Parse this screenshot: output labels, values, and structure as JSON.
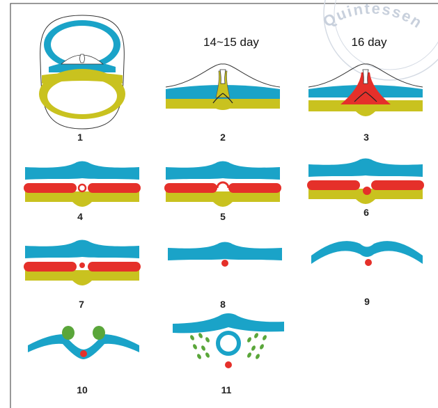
{
  "watermark": "Quintessen",
  "stage_labels": [
    "14~15 day",
    "16 day"
  ],
  "panels": [
    "1",
    "2",
    "3",
    "4",
    "5",
    "6",
    "7",
    "8",
    "9",
    "10",
    "11"
  ]
}
